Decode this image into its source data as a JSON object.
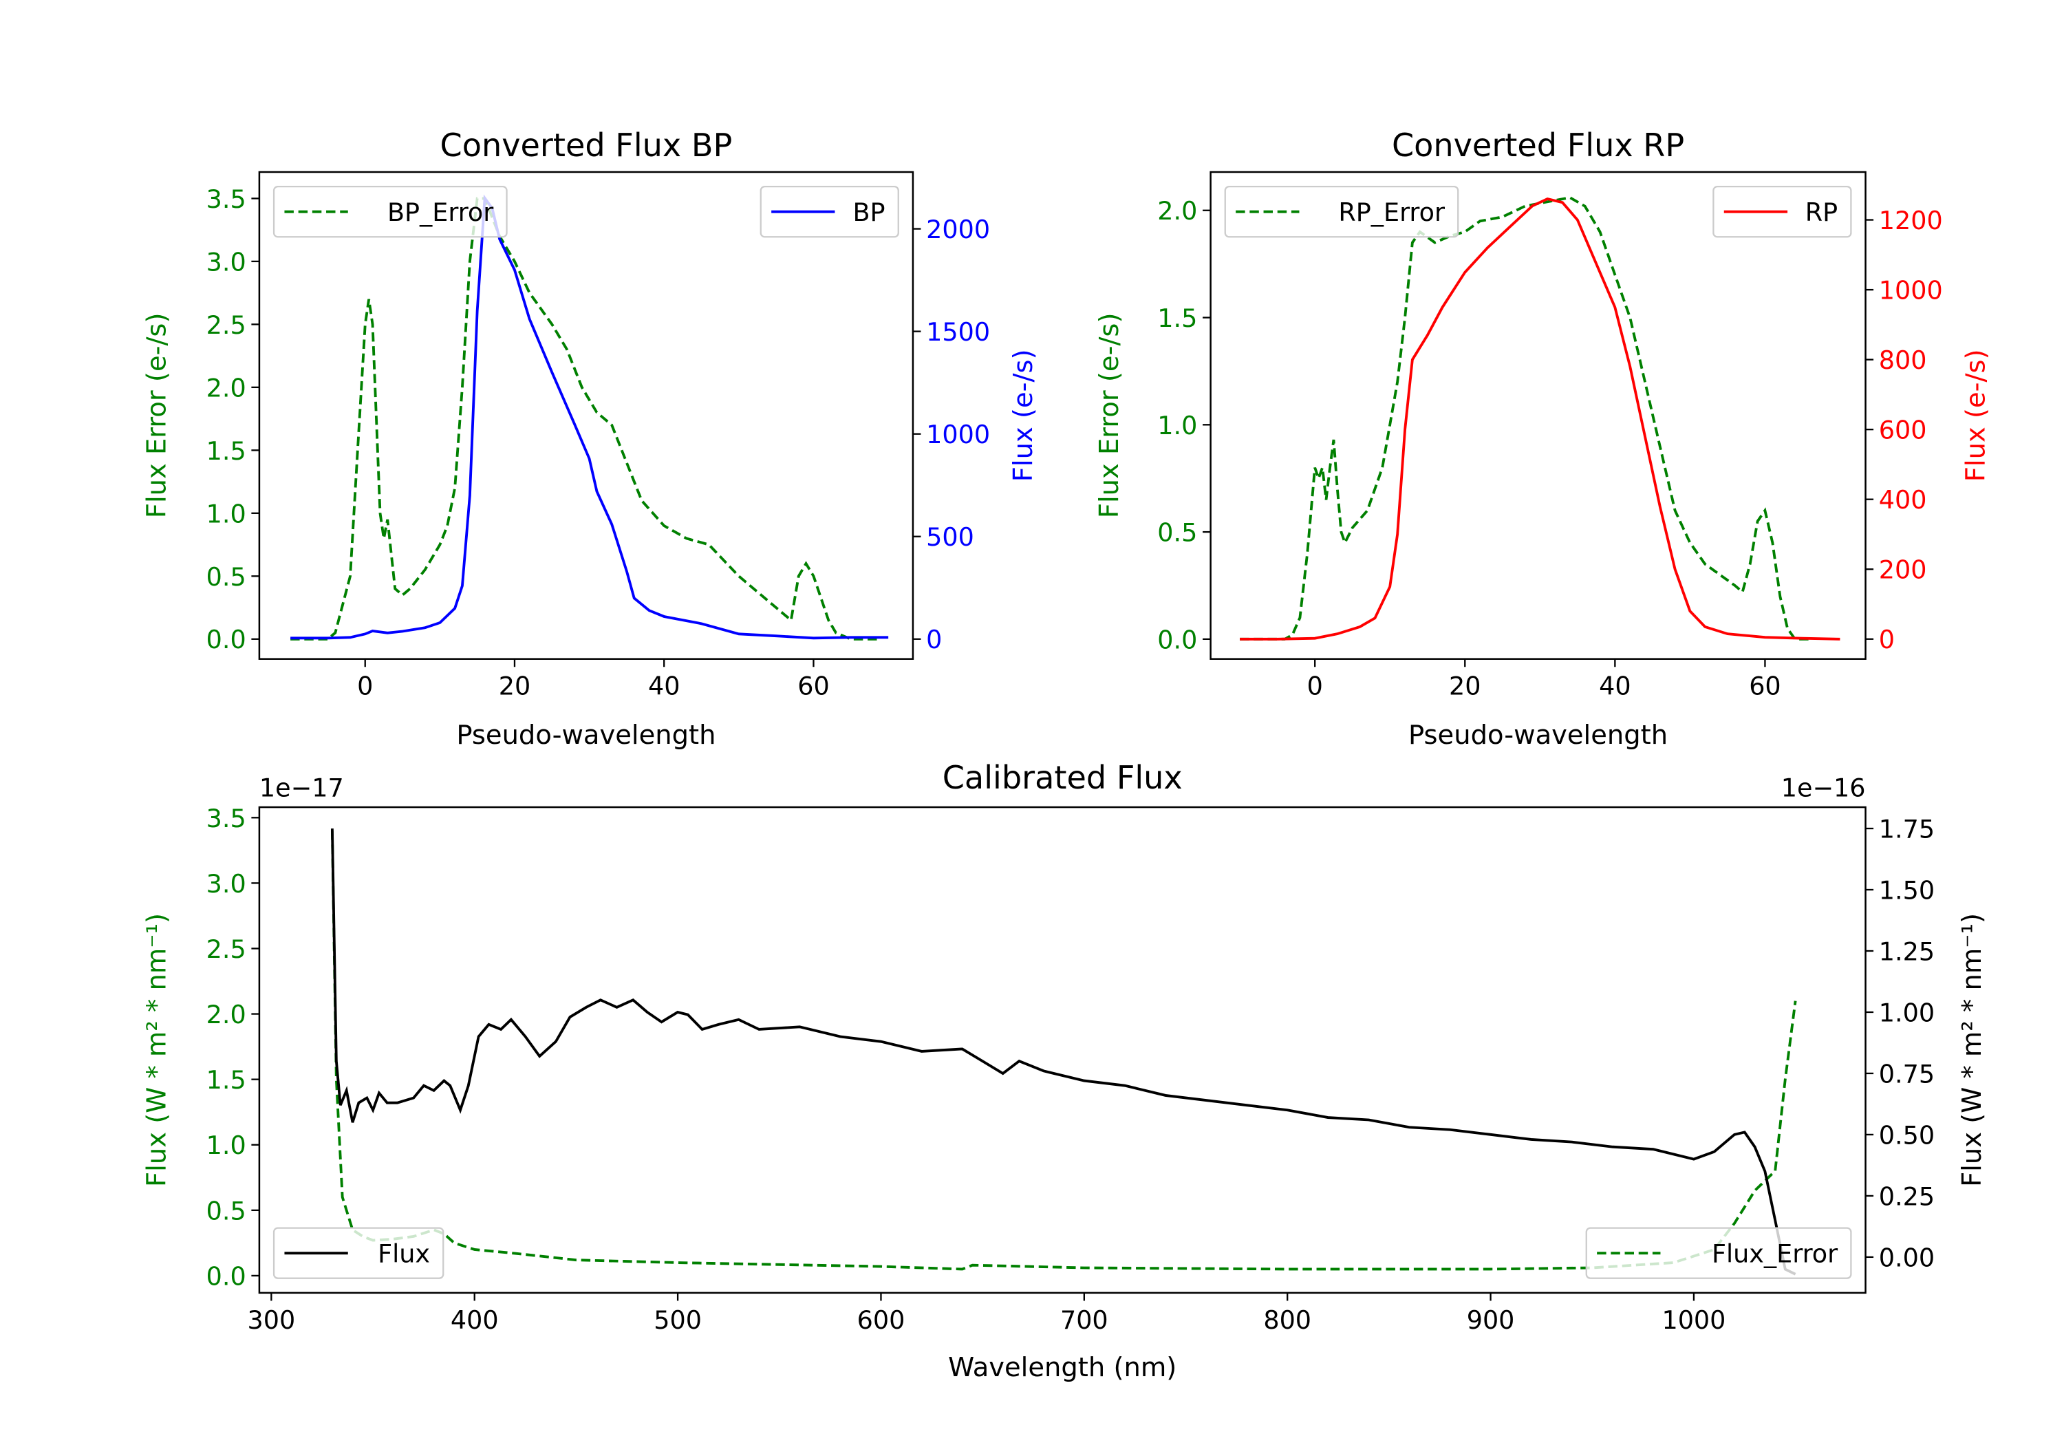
{
  "chart_data": [
    {
      "id": "bp",
      "type": "line",
      "title": "Converted Flux BP",
      "xlabel": "Pseudo-wavelength",
      "ylabel_left": "Flux Error (e-/s)",
      "ylabel_right": "Flux (e-/s)",
      "xlim": [
        -14.16,
        73.3
      ],
      "ylim_left": [
        -0.158,
        3.71
      ],
      "ylim_right": [
        -97,
        2277
      ],
      "xticks": {
        "values": [
          0,
          20,
          40,
          60
        ],
        "labels": [
          "0",
          "20",
          "40",
          "60"
        ]
      },
      "yticks_left": {
        "values": [
          0,
          0.5,
          1,
          1.5,
          2,
          2.5,
          3,
          3.5
        ],
        "labels": [
          "0.0",
          "0.5",
          "1.0",
          "1.5",
          "2.0",
          "2.5",
          "3.0",
          "3.5"
        ]
      },
      "yticks_right": {
        "values": [
          0,
          500,
          1000,
          1500,
          2000
        ],
        "labels": [
          "0",
          "500",
          "1000",
          "1500",
          "2000"
        ]
      },
      "left_color": "#008000",
      "right_color": "#0000ff",
      "series": [
        {
          "name": "BP_Error",
          "axis": "left",
          "color": "#008000",
          "style": "dashed",
          "legend": "top-left",
          "x": [
            -10,
            -5,
            -4,
            -2,
            -1,
            0,
            0.5,
            1,
            2,
            2.5,
            3,
            4,
            5,
            6,
            8,
            10,
            11,
            12,
            13,
            14,
            15,
            16,
            18,
            20,
            22,
            25,
            27,
            29,
            31,
            33,
            35,
            37,
            40,
            43,
            46,
            50,
            55,
            57,
            58,
            59,
            60,
            62,
            63,
            65,
            69
          ],
          "y": [
            0,
            0,
            0.05,
            0.5,
            1.5,
            2.5,
            2.7,
            2.5,
            1.0,
            0.8,
            0.95,
            0.4,
            0.35,
            0.4,
            0.55,
            0.75,
            0.9,
            1.2,
            2.0,
            3.0,
            3.5,
            3.5,
            3.2,
            3.0,
            2.75,
            2.5,
            2.3,
            2.0,
            1.8,
            1.7,
            1.4,
            1.1,
            0.9,
            0.8,
            0.75,
            0.5,
            0.25,
            0.15,
            0.5,
            0.6,
            0.5,
            0.15,
            0.05,
            0,
            0
          ]
        },
        {
          "name": "BP",
          "axis": "right",
          "color": "#0000ff",
          "style": "solid",
          "legend": "top-right",
          "x": [
            -10,
            -5,
            -2,
            0,
            1,
            3,
            5,
            8,
            10,
            12,
            13,
            14,
            15,
            16,
            17,
            18,
            20,
            22,
            25,
            28,
            30,
            31,
            33,
            35,
            36,
            38,
            40,
            45,
            50,
            55,
            60,
            65,
            70
          ],
          "y": [
            5,
            5,
            8,
            25,
            40,
            30,
            38,
            55,
            80,
            150,
            260,
            700,
            1600,
            2150,
            2100,
            1950,
            1800,
            1560,
            1300,
            1050,
            880,
            720,
            560,
            330,
            200,
            140,
            110,
            75,
            25,
            15,
            5,
            8,
            8
          ]
        }
      ]
    },
    {
      "id": "rp",
      "type": "line",
      "title": "Converted Flux RP",
      "xlabel": "Pseudo-wavelength",
      "ylabel_left": "Flux Error (e-/s)",
      "ylabel_right": "Flux (e-/s)",
      "xlim": [
        -13.9,
        73.4
      ],
      "ylim_left": [
        -0.0926,
        2.179
      ],
      "ylim_right": [
        -57,
        1337
      ],
      "xticks": {
        "values": [
          0,
          20,
          40,
          60
        ],
        "labels": [
          "0",
          "20",
          "40",
          "60"
        ]
      },
      "yticks_left": {
        "values": [
          0,
          0.5,
          1,
          1.5,
          2
        ],
        "labels": [
          "0.0",
          "0.5",
          "1.0",
          "1.5",
          "2.0"
        ]
      },
      "yticks_right": {
        "values": [
          0,
          200,
          400,
          600,
          800,
          1000,
          1200
        ],
        "labels": [
          "0",
          "200",
          "400",
          "600",
          "800",
          "1000",
          "1200"
        ]
      },
      "left_color": "#008000",
      "right_color": "#ff0000",
      "series": [
        {
          "name": "RP_Error",
          "axis": "left",
          "color": "#008000",
          "style": "dashed",
          "legend": "top-left",
          "x": [
            -10,
            -4,
            -3,
            -2,
            -1,
            0,
            0.5,
            1,
            1.5,
            2,
            2.5,
            3,
            3.5,
            4,
            5,
            7,
            9,
            11,
            12,
            13,
            14,
            16,
            18,
            20,
            22,
            25,
            28,
            31,
            34,
            36,
            38,
            40,
            42,
            44,
            46,
            48,
            50,
            52,
            54,
            56,
            57,
            58,
            59,
            60,
            61,
            62,
            63,
            64,
            66
          ],
          "y": [
            0,
            0,
            0.02,
            0.1,
            0.4,
            0.8,
            0.75,
            0.8,
            0.65,
            0.8,
            0.93,
            0.7,
            0.5,
            0.45,
            0.52,
            0.6,
            0.8,
            1.2,
            1.5,
            1.85,
            1.9,
            1.85,
            1.88,
            1.9,
            1.95,
            1.97,
            2.02,
            2.04,
            2.06,
            2.02,
            1.9,
            1.7,
            1.5,
            1.2,
            0.9,
            0.6,
            0.45,
            0.35,
            0.3,
            0.25,
            0.22,
            0.35,
            0.55,
            0.6,
            0.45,
            0.2,
            0.05,
            0,
            0
          ]
        },
        {
          "name": "RP",
          "axis": "right",
          "color": "#ff0000",
          "style": "solid",
          "legend": "top-right",
          "x": [
            -10,
            -5,
            0,
            3,
            6,
            8,
            10,
            11,
            12,
            13,
            15,
            17,
            20,
            23,
            26,
            29,
            31,
            33,
            35,
            37,
            40,
            42,
            44,
            46,
            48,
            50,
            52,
            55,
            60,
            65,
            70
          ],
          "y": [
            0,
            0,
            2,
            15,
            35,
            60,
            150,
            300,
            600,
            800,
            870,
            950,
            1050,
            1120,
            1180,
            1240,
            1260,
            1250,
            1200,
            1100,
            950,
            780,
            580,
            380,
            200,
            80,
            35,
            15,
            5,
            2,
            0
          ]
        }
      ]
    },
    {
      "id": "cal",
      "type": "line",
      "title": "Calibrated Flux",
      "xlabel": "Wavelength (nm)",
      "ylabel_left": "Flux (W * m² * nm⁻¹)",
      "ylabel_right": "Flux (W * m² * nm⁻¹)",
      "offset_left": "1e−17",
      "offset_right": "1e−16",
      "xlim": [
        294.1,
        1084.5
      ],
      "ylim_left": [
        -0.131,
        3.58
      ],
      "ylim_right": [
        -0.146,
        1.837
      ],
      "xticks": {
        "values": [
          300,
          400,
          500,
          600,
          700,
          800,
          900,
          1000
        ],
        "labels": [
          "300",
          "400",
          "500",
          "600",
          "700",
          "800",
          "900",
          "1000"
        ]
      },
      "yticks_left": {
        "values": [
          0,
          0.5,
          1,
          1.5,
          2,
          2.5,
          3,
          3.5
        ],
        "labels": [
          "0.0",
          "0.5",
          "1.0",
          "1.5",
          "2.0",
          "2.5",
          "3.0",
          "3.5"
        ]
      },
      "yticks_right": {
        "values": [
          0,
          0.25,
          0.5,
          0.75,
          1,
          1.25,
          1.5,
          1.75
        ],
        "labels": [
          "0.00",
          "0.25",
          "0.50",
          "0.75",
          "1.00",
          "1.25",
          "1.50",
          "1.75"
        ]
      },
      "left_color": "#008000",
      "right_color": "#000000",
      "series": [
        {
          "name": "Flux_Error",
          "axis": "left",
          "color": "#008000",
          "style": "dashed",
          "legend": "bottom-right",
          "x": [
            330,
            332,
            335,
            340,
            345,
            350,
            360,
            370,
            380,
            385,
            390,
            400,
            420,
            450,
            500,
            600,
            640,
            645,
            700,
            800,
            900,
            950,
            990,
            1010,
            1020,
            1030,
            1040,
            1045,
            1050
          ],
          "y": [
            3.4,
            1.5,
            0.6,
            0.35,
            0.3,
            0.27,
            0.28,
            0.3,
            0.35,
            0.32,
            0.25,
            0.2,
            0.17,
            0.12,
            0.1,
            0.07,
            0.05,
            0.08,
            0.06,
            0.05,
            0.05,
            0.06,
            0.1,
            0.2,
            0.4,
            0.65,
            0.8,
            1.5,
            2.1
          ]
        },
        {
          "name": "Flux",
          "axis": "right",
          "color": "#000000",
          "style": "solid",
          "legend": "bottom-left",
          "x": [
            330,
            332,
            334,
            337,
            340,
            343,
            347,
            350,
            353,
            357,
            362,
            370,
            375,
            380,
            385,
            388,
            393,
            397,
            402,
            407,
            413,
            418,
            425,
            432,
            440,
            447,
            455,
            462,
            470,
            478,
            485,
            492,
            500,
            505,
            512,
            520,
            530,
            540,
            560,
            580,
            600,
            620,
            640,
            650,
            660,
            668,
            680,
            700,
            720,
            740,
            760,
            780,
            800,
            820,
            840,
            860,
            880,
            900,
            920,
            940,
            960,
            980,
            1000,
            1010,
            1020,
            1025,
            1030,
            1035,
            1040,
            1045,
            1050
          ],
          "y": [
            1.75,
            0.8,
            0.62,
            0.68,
            0.55,
            0.63,
            0.65,
            0.6,
            0.67,
            0.63,
            0.63,
            0.65,
            0.7,
            0.68,
            0.72,
            0.7,
            0.6,
            0.7,
            0.9,
            0.95,
            0.93,
            0.97,
            0.9,
            0.82,
            0.88,
            0.98,
            1.02,
            1.05,
            1.02,
            1.05,
            1.0,
            0.96,
            1.0,
            0.99,
            0.93,
            0.95,
            0.97,
            0.93,
            0.94,
            0.9,
            0.88,
            0.84,
            0.85,
            0.8,
            0.75,
            0.8,
            0.76,
            0.72,
            0.7,
            0.66,
            0.64,
            0.62,
            0.6,
            0.57,
            0.56,
            0.53,
            0.52,
            0.5,
            0.48,
            0.47,
            0.45,
            0.44,
            0.4,
            0.43,
            0.5,
            0.51,
            0.45,
            0.35,
            0.15,
            -0.05,
            -0.07
          ]
        }
      ]
    }
  ]
}
